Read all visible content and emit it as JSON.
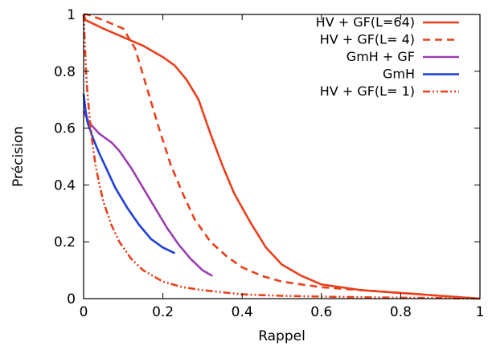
{
  "chart_data": {
    "type": "line",
    "xlabel": "Rappel",
    "ylabel": "Précision",
    "xlim": [
      0,
      1
    ],
    "ylim": [
      0,
      1
    ],
    "xticks": [
      "0",
      "0.2",
      "0.4",
      "0.6",
      "0.8",
      "1"
    ],
    "yticks": [
      "0",
      "0.2",
      "0.4",
      "0.6",
      "0.8",
      "1"
    ],
    "grid": false,
    "legend_position": "top-right",
    "series": [
      {
        "name": "HV + GF(L=64)",
        "color": "#e8401c",
        "dash": "solid",
        "x": [
          0,
          0.005,
          0.02,
          0.05,
          0.1,
          0.15,
          0.2,
          0.23,
          0.26,
          0.29,
          0.32,
          0.35,
          0.38,
          0.42,
          0.46,
          0.5,
          0.55,
          0.6,
          0.7,
          0.8,
          0.9,
          1.0
        ],
        "y": [
          1.0,
          0.98,
          0.97,
          0.95,
          0.92,
          0.89,
          0.85,
          0.82,
          0.77,
          0.7,
          0.58,
          0.47,
          0.37,
          0.27,
          0.18,
          0.12,
          0.08,
          0.05,
          0.03,
          0.02,
          0.01,
          0.0
        ]
      },
      {
        "name": "HV + GF(L=  4)",
        "color": "#e8401c",
        "dash": "dashed",
        "x": [
          0.0,
          0.01,
          0.05,
          0.1,
          0.13,
          0.16,
          0.19,
          0.22,
          0.25,
          0.28,
          0.32,
          0.36,
          0.4,
          0.45,
          0.5,
          0.6,
          0.7,
          0.8,
          0.9,
          1.0
        ],
        "y": [
          1.0,
          1.0,
          0.98,
          0.95,
          0.88,
          0.74,
          0.6,
          0.47,
          0.37,
          0.28,
          0.2,
          0.15,
          0.11,
          0.08,
          0.06,
          0.04,
          0.03,
          0.02,
          0.01,
          0.0
        ]
      },
      {
        "name": "GmH + GF",
        "color": "#9b3faf",
        "dash": "solid",
        "x": [
          0.0,
          0.01,
          0.02,
          0.04,
          0.07,
          0.09,
          0.12,
          0.15,
          0.18,
          0.21,
          0.24,
          0.27,
          0.3,
          0.325
        ],
        "y": [
          0.66,
          0.63,
          0.61,
          0.58,
          0.55,
          0.52,
          0.46,
          0.39,
          0.32,
          0.25,
          0.19,
          0.14,
          0.1,
          0.08
        ]
      },
      {
        "name": "GmH",
        "color": "#1f3fd6",
        "dash": "solid",
        "x": [
          0.0,
          0.005,
          0.01,
          0.015,
          0.025,
          0.04,
          0.06,
          0.08,
          0.11,
          0.14,
          0.17,
          0.2,
          0.23
        ],
        "y": [
          0.72,
          0.66,
          0.62,
          0.6,
          0.56,
          0.51,
          0.45,
          0.39,
          0.32,
          0.26,
          0.21,
          0.18,
          0.16
        ]
      },
      {
        "name": "HV + GF(L=  1)",
        "color": "#e8401c",
        "dash": "dashdotdot",
        "x": [
          0.0,
          0.003,
          0.006,
          0.01,
          0.015,
          0.02,
          0.03,
          0.04,
          0.05,
          0.07,
          0.09,
          0.12,
          0.15,
          0.2,
          0.25,
          0.3,
          0.4,
          0.5,
          0.6,
          0.7,
          0.8,
          0.9,
          1.0
        ],
        "y": [
          1.0,
          0.9,
          0.8,
          0.72,
          0.64,
          0.57,
          0.47,
          0.4,
          0.34,
          0.26,
          0.2,
          0.14,
          0.1,
          0.06,
          0.04,
          0.03,
          0.015,
          0.01,
          0.007,
          0.005,
          0.003,
          0.002,
          0.0
        ]
      }
    ]
  }
}
